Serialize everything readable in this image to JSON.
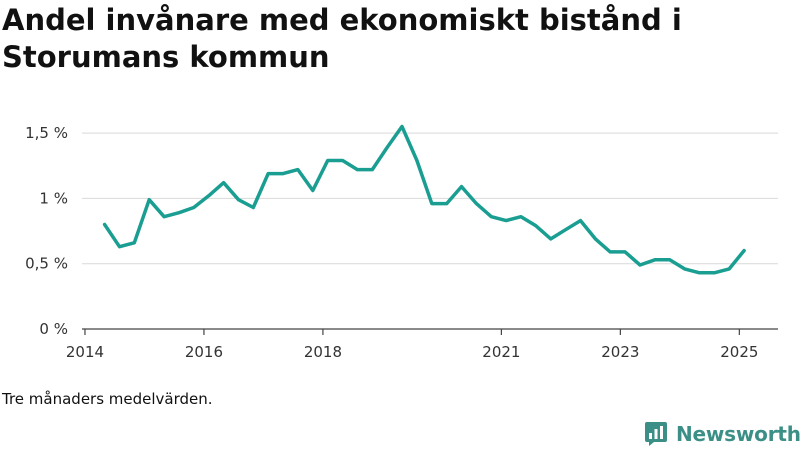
{
  "chart_data": {
    "type": "line",
    "title": "Andel invånare med ekonomiskt bistånd i Storumans kommun",
    "xlabel": "",
    "ylabel": "",
    "x_ticks": [
      {
        "value": 2014.0,
        "label": "2014"
      },
      {
        "value": 2016.0,
        "label": "2016"
      },
      {
        "value": 2018.0,
        "label": "2018"
      },
      {
        "value": 2021.0,
        "label": "2021"
      },
      {
        "value": 2023.0,
        "label": "2023"
      },
      {
        "value": 2025.0,
        "label": "2025"
      }
    ],
    "y_ticks": [
      {
        "value": 0,
        "label": "0 %"
      },
      {
        "value": 0.5,
        "label": "0,5 %"
      },
      {
        "value": 1.0,
        "label": "1 %"
      },
      {
        "value": 1.5,
        "label": "1,5 %"
      }
    ],
    "xlim": [
      2013.95,
      2025.65
    ],
    "ylim": [
      0,
      1.6
    ],
    "grid": true,
    "line_color": "#1a9e92",
    "series": [
      {
        "name": "",
        "x": [
          2014.33,
          2014.58,
          2014.83,
          2015.08,
          2015.33,
          2015.58,
          2015.83,
          2016.08,
          2016.33,
          2016.58,
          2016.83,
          2017.08,
          2017.33,
          2017.58,
          2017.83,
          2018.08,
          2018.33,
          2018.58,
          2018.83,
          2019.08,
          2019.33,
          2019.58,
          2019.83,
          2020.08,
          2020.33,
          2020.58,
          2020.83,
          2021.08,
          2021.33,
          2021.58,
          2021.83,
          2022.08,
          2022.33,
          2022.58,
          2022.83,
          2023.08,
          2023.33,
          2023.58,
          2023.83,
          2024.08,
          2024.33,
          2024.58,
          2024.83,
          2025.08
        ],
        "values": [
          0.8,
          0.63,
          0.66,
          0.99,
          0.86,
          0.89,
          0.93,
          1.02,
          1.12,
          0.99,
          0.93,
          1.19,
          1.19,
          1.22,
          1.06,
          1.29,
          1.29,
          1.22,
          1.22,
          1.39,
          1.55,
          1.29,
          0.96,
          0.96,
          1.09,
          0.96,
          0.86,
          0.83,
          0.86,
          0.79,
          0.69,
          0.76,
          0.83,
          0.69,
          0.59,
          0.59,
          0.49,
          0.53,
          0.53,
          0.46,
          0.43,
          0.43,
          0.46,
          0.6
        ]
      }
    ]
  },
  "footnote": "Tre månaders medelvärden.",
  "brand": {
    "name": "Newsworthy",
    "icon": "newsworthy-logo-icon",
    "color": "#3b8f87"
  }
}
